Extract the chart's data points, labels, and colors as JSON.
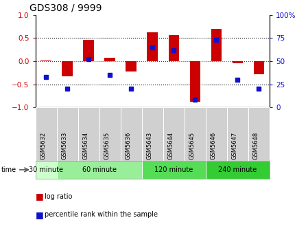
{
  "title": "GDS308 / 9999",
  "samples": [
    "GSM5632",
    "GSM5633",
    "GSM5634",
    "GSM5635",
    "GSM5636",
    "GSM5643",
    "GSM5644",
    "GSM5645",
    "GSM5646",
    "GSM5647",
    "GSM5648"
  ],
  "log_ratio": [
    0.02,
    -0.32,
    0.46,
    0.07,
    -0.23,
    0.63,
    0.57,
    -0.87,
    0.7,
    -0.04,
    -0.28
  ],
  "percentile": [
    33,
    20,
    52,
    35,
    20,
    65,
    62,
    8,
    73,
    30,
    20
  ],
  "groups": [
    {
      "label": "30 minute",
      "start": 0,
      "end": 1,
      "color": "#ccffcc"
    },
    {
      "label": "60 minute",
      "start": 1,
      "end": 5,
      "color": "#99ee99"
    },
    {
      "label": "120 minute",
      "start": 5,
      "end": 8,
      "color": "#55dd55"
    },
    {
      "label": "240 minute",
      "start": 8,
      "end": 11,
      "color": "#33cc33"
    }
  ],
  "bar_color": "#cc0000",
  "dot_color": "#1111cc",
  "ylim": [
    -1,
    1
  ],
  "y2lim": [
    0,
    100
  ],
  "yticks": [
    -1,
    -0.5,
    0,
    0.5,
    1
  ],
  "y2ticks": [
    0,
    25,
    50,
    75,
    100
  ],
  "bar_width": 0.5
}
